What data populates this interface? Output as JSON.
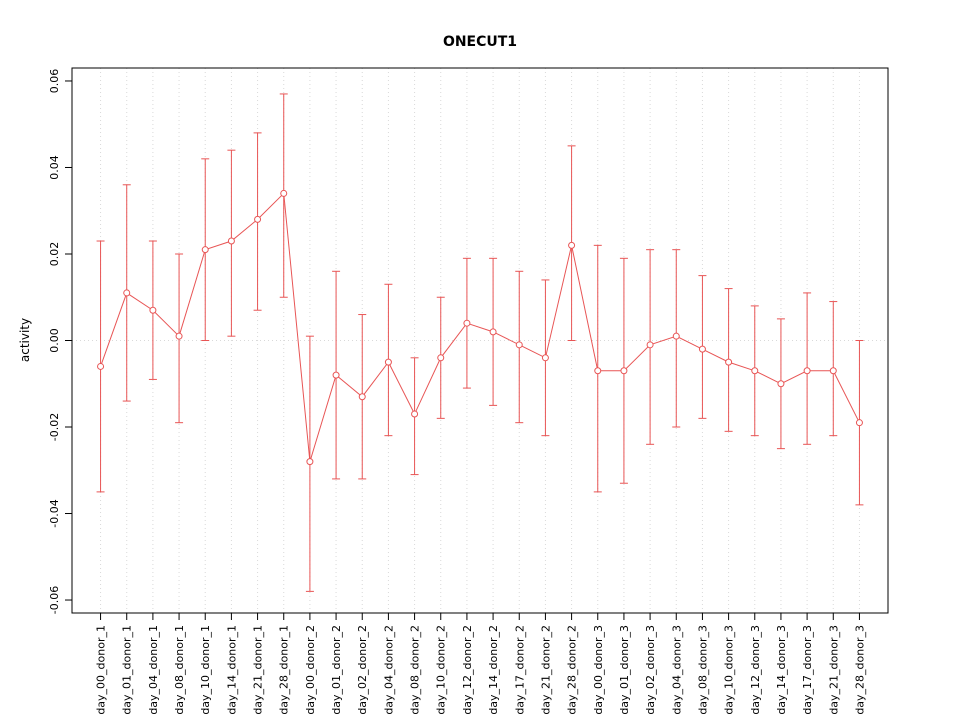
{
  "chart_data": {
    "type": "line",
    "title": "ONECUT1",
    "xlabel": "",
    "ylabel": "activity",
    "ylim": [
      -0.06,
      0.06
    ],
    "ytick_values": [
      -0.06,
      -0.04,
      -0.02,
      0,
      0.02,
      0.04,
      0.06
    ],
    "ytick_labels": [
      "-0.06",
      "-0.04",
      "-0.02",
      "0.00",
      "0.02",
      "0.04",
      "0.06"
    ],
    "grid": {
      "vertical": "dotted",
      "zero_line": "dotted"
    },
    "legend": "none",
    "marker": "open-circle",
    "error_bars": true,
    "categories": [
      "day_00_donor_1",
      "day_01_donor_1",
      "day_04_donor_1",
      "day_08_donor_1",
      "day_10_donor_1",
      "day_14_donor_1",
      "day_21_donor_1",
      "day_28_donor_1",
      "day_00_donor_2",
      "day_01_donor_2",
      "day_02_donor_2",
      "day_04_donor_2",
      "day_08_donor_2",
      "day_10_donor_2",
      "day_12_donor_2",
      "day_14_donor_2",
      "day_17_donor_2",
      "day_21_donor_2",
      "day_28_donor_2",
      "day_00_donor_3",
      "day_01_donor_3",
      "day_02_donor_3",
      "day_04_donor_3",
      "day_08_donor_3",
      "day_10_donor_3",
      "day_12_donor_3",
      "day_14_donor_3",
      "day_17_donor_3",
      "day_21_donor_3",
      "day_28_donor_3"
    ],
    "values": [
      -0.006,
      0.011,
      0.007,
      0.001,
      0.021,
      0.023,
      0.028,
      0.034,
      -0.028,
      -0.008,
      -0.013,
      -0.005,
      -0.017,
      -0.004,
      0.004,
      0.002,
      -0.001,
      -0.004,
      0.022,
      -0.007,
      -0.007,
      -0.001,
      0.001,
      -0.002,
      -0.005,
      -0.007,
      -0.01,
      -0.007,
      -0.007,
      -0.019
    ],
    "upper": [
      0.023,
      0.036,
      0.023,
      0.02,
      0.042,
      0.044,
      0.048,
      0.057,
      0.001,
      0.016,
      0.006,
      0.013,
      -0.004,
      0.01,
      0.019,
      0.019,
      0.016,
      0.014,
      0.045,
      0.022,
      0.019,
      0.021,
      0.021,
      0.015,
      0.012,
      0.008,
      0.005,
      0.011,
      0.009,
      0.0
    ],
    "lower": [
      -0.035,
      -0.014,
      -0.009,
      -0.019,
      0.0,
      0.001,
      0.007,
      0.01,
      -0.058,
      -0.032,
      -0.032,
      -0.022,
      -0.031,
      -0.018,
      -0.011,
      -0.015,
      -0.019,
      -0.022,
      0.0,
      -0.035,
      -0.033,
      -0.024,
      -0.02,
      -0.018,
      -0.021,
      -0.022,
      -0.025,
      -0.024,
      -0.022,
      -0.038
    ]
  },
  "colors": {
    "series": "#e85555",
    "grid": "#d9d9d9",
    "axis": "#000000",
    "background": "#ffffff"
  }
}
